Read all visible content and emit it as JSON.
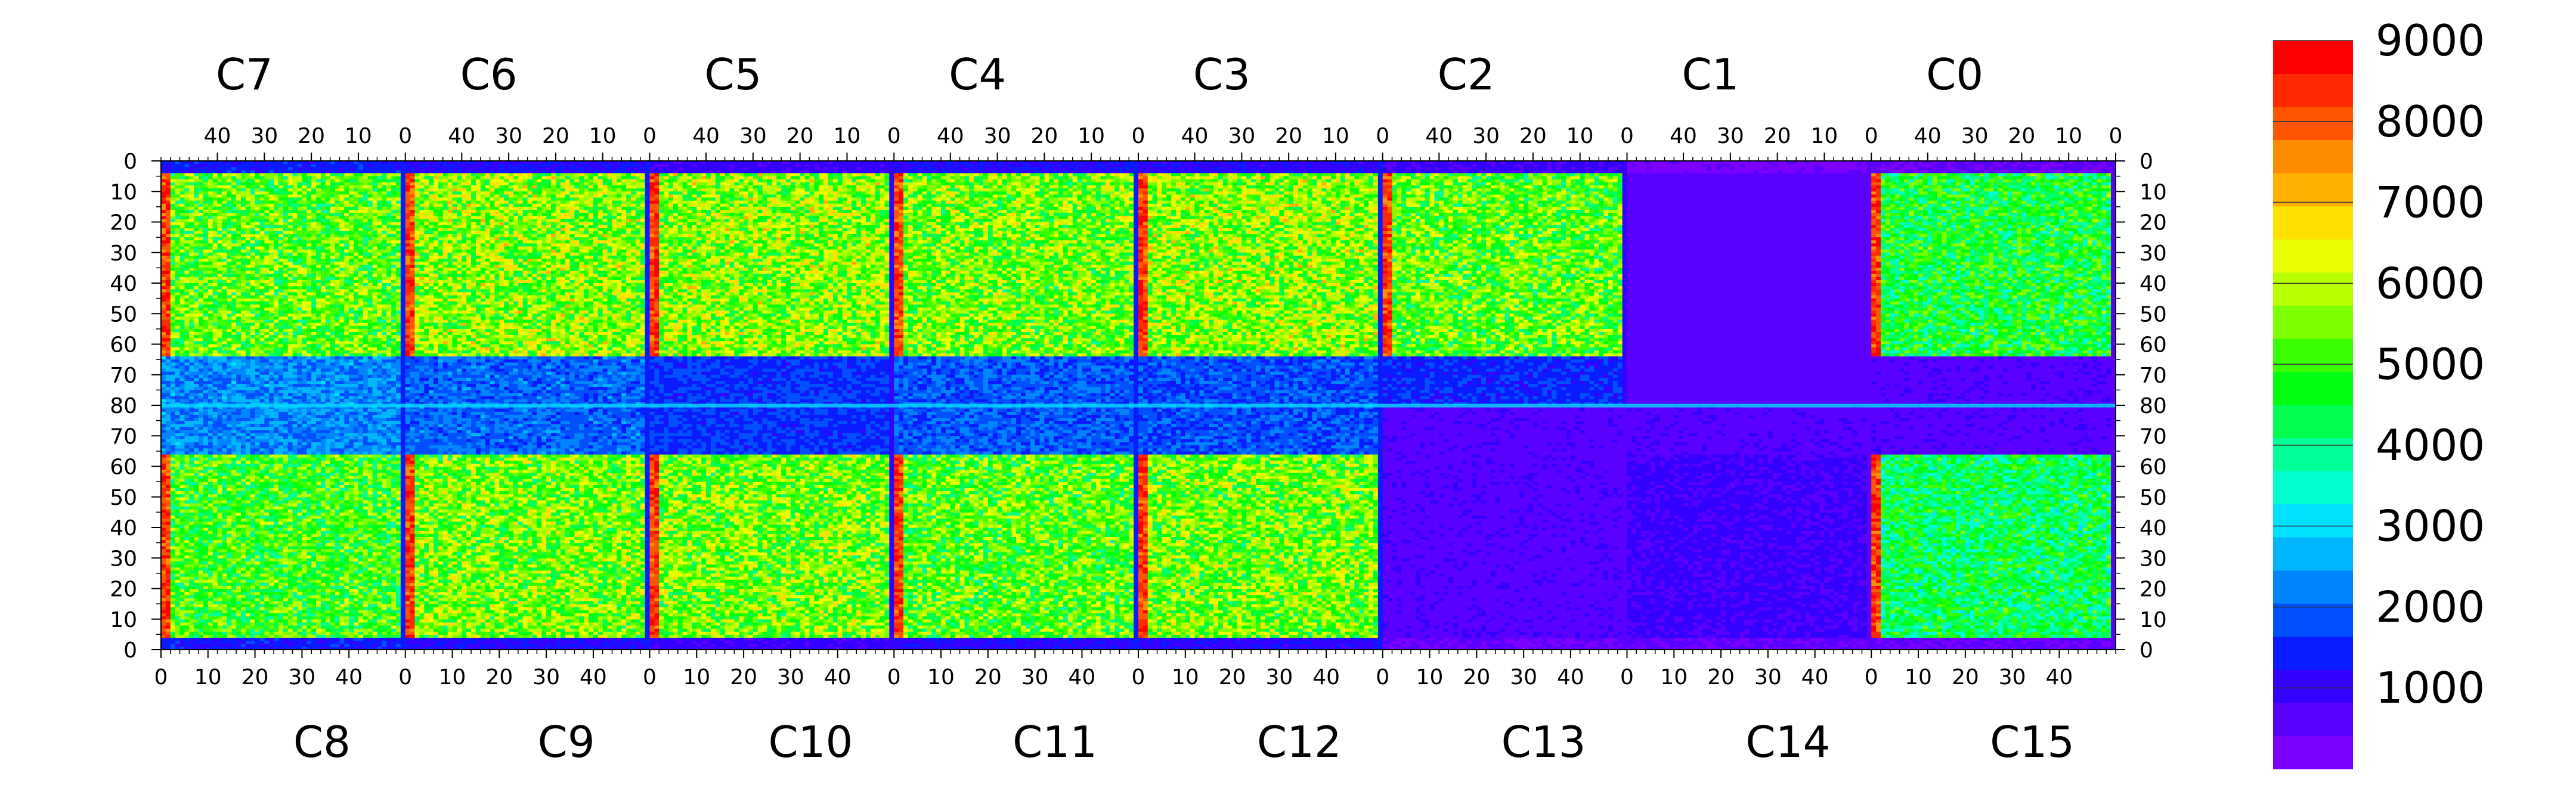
{
  "chart_data": {
    "type": "heatmap",
    "title": "",
    "xlabel": "",
    "ylabel": "",
    "top_chips": [
      "C7",
      "C6",
      "C5",
      "C4",
      "C3",
      "C2",
      "C1",
      "C0"
    ],
    "bottom_chips": [
      "C8",
      "C9",
      "C10",
      "C11",
      "C12",
      "C13",
      "C14",
      "C15"
    ],
    "top_axis_ticks": [
      "40",
      "30",
      "20",
      "10",
      "0"
    ],
    "bottom_axis_ticks": [
      "0",
      "10",
      "20",
      "30",
      "40"
    ],
    "chip_columns": 52,
    "rows_per_half": 80,
    "left_axis_ticks": [
      "0",
      "10",
      "20",
      "30",
      "40",
      "50",
      "60",
      "70",
      "80",
      "70",
      "60",
      "50",
      "40",
      "30",
      "20",
      "10",
      "0"
    ],
    "right_axis_ticks": [
      "0",
      "10",
      "20",
      "30",
      "40",
      "50",
      "60",
      "70",
      "80",
      "70",
      "60",
      "50",
      "40",
      "30",
      "20",
      "10",
      "0"
    ],
    "colorbar": {
      "min": 0,
      "max": 9000,
      "ticks": [
        "1000",
        "2000",
        "3000",
        "4000",
        "5000",
        "6000",
        "7000",
        "8000",
        "9000"
      ],
      "tick_values": [
        1000,
        2000,
        3000,
        4000,
        5000,
        6000,
        7000,
        8000,
        9000
      ],
      "colors": [
        "#7b00ff",
        "#5a00ff",
        "#3400ff",
        "#0a1cff",
        "#0050ff",
        "#0085ff",
        "#00b6ff",
        "#00e0ff",
        "#00ffcf",
        "#00ff96",
        "#00ff50",
        "#00ff10",
        "#39ff00",
        "#7dff00",
        "#b8ff00",
        "#e8ff00",
        "#ffe000",
        "#ffb000",
        "#ff8c00",
        "#ff5500",
        "#ff2a00",
        "#ff0000"
      ]
    },
    "chip_mean_levels": [
      {
        "chip": "C7",
        "top_region": 5200,
        "mid_region": 2300
      },
      {
        "chip": "C6",
        "top_region": 5600,
        "mid_region": 2000
      },
      {
        "chip": "C5",
        "top_region": 5600,
        "mid_region": 1600
      },
      {
        "chip": "C4",
        "top_region": 5400,
        "mid_region": 1900
      },
      {
        "chip": "C3",
        "top_region": 5600,
        "mid_region": 1800
      },
      {
        "chip": "C2",
        "top_region": 5200,
        "mid_region": 1500
      },
      {
        "chip": "C1",
        "top_region": 600,
        "mid_region": 600
      },
      {
        "chip": "C0",
        "top_region": 4600,
        "mid_region": 700
      },
      {
        "chip": "C8",
        "top_region": 5000,
        "mid_region": 2300
      },
      {
        "chip": "C9",
        "top_region": 5400,
        "mid_region": 2000
      },
      {
        "chip": "C10",
        "top_region": 5400,
        "mid_region": 1600
      },
      {
        "chip": "C11",
        "top_region": 5200,
        "mid_region": 1900
      },
      {
        "chip": "C12",
        "top_region": 5400,
        "mid_region": 1800
      },
      {
        "chip": "C13",
        "top_region": 700,
        "mid_region": 700
      },
      {
        "chip": "C14",
        "top_region": 900,
        "mid_region": 700
      },
      {
        "chip": "C15",
        "top_region": 4300,
        "mid_region": 700
      }
    ]
  }
}
